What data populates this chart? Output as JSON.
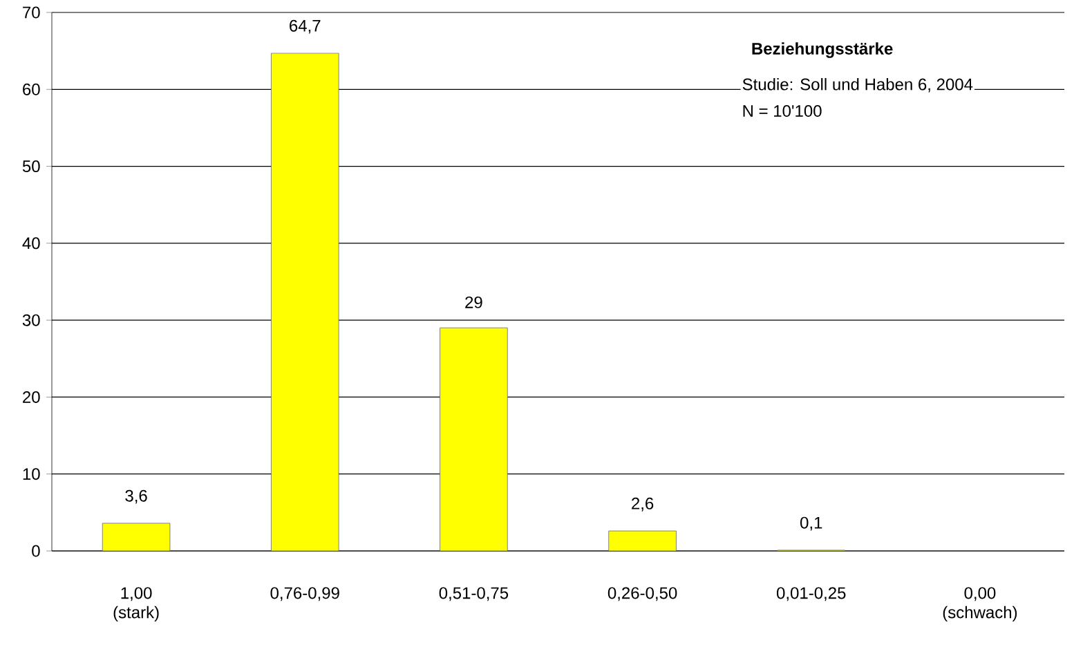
{
  "chart_data": {
    "type": "bar",
    "title": "Beziehungsstärke",
    "annotations": [
      "Studie: Soll und Haben 6, 2004",
      "N = 10'100"
    ],
    "categories": [
      "1,00 (stark)",
      "0,76-0,99",
      "0,51-0,75",
      "0,26-0,50",
      "0,01-0,25",
      "0,00 (schwach)"
    ],
    "values": [
      3.6,
      64.7,
      29,
      2.6,
      0.1,
      null
    ],
    "value_labels": [
      "3,6",
      "64,7",
      "29",
      "2,6",
      "0,1",
      null
    ],
    "color": "#ffff00",
    "ylim": [
      0,
      70
    ],
    "yticks": [
      0,
      10,
      20,
      30,
      40,
      50,
      60,
      70
    ],
    "grid": "y"
  }
}
